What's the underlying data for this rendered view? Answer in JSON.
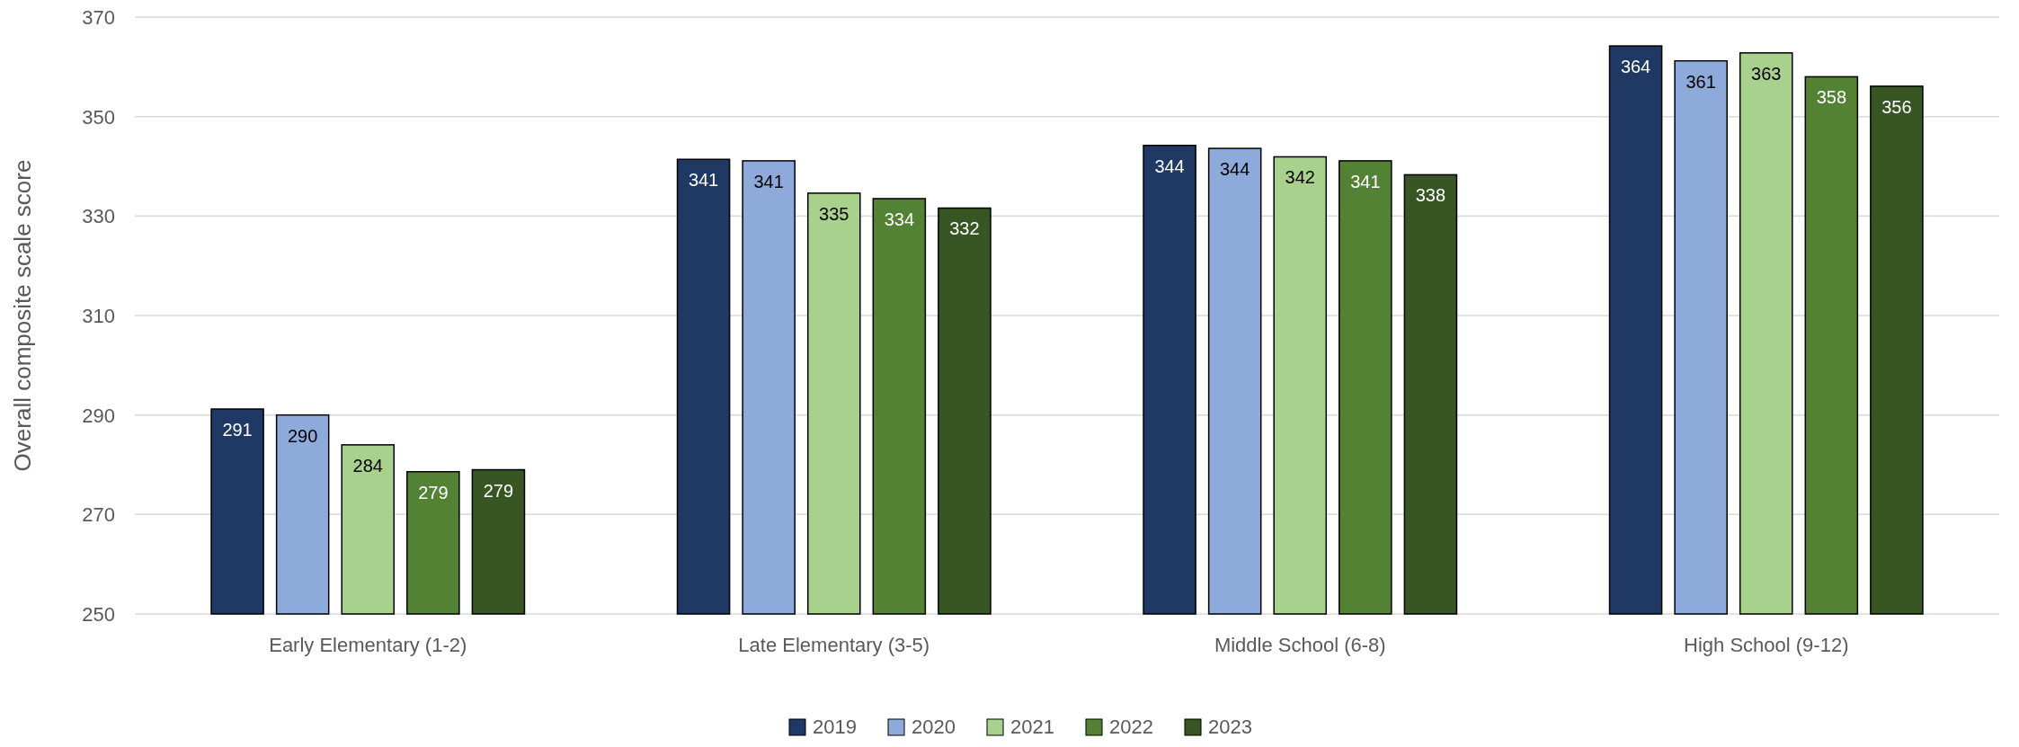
{
  "chart_data": {
    "type": "bar",
    "ylabel": "Overall composite scale score",
    "categories": [
      "Early Elementary (1-2)",
      "Late Elementary (3-5)",
      "Middle School (6-8)",
      "High School (9-12)"
    ],
    "series": [
      {
        "name": "2019",
        "color": "#1f3864",
        "values": [
          291.2,
          341.4,
          344.2,
          364.2
        ],
        "value_labels": [
          "291",
          "341",
          "344",
          "364"
        ]
      },
      {
        "name": "2020",
        "color": "#8eaadb",
        "values": [
          290,
          341.1,
          343.6,
          361.2
        ],
        "value_labels": [
          "290",
          "341",
          "344",
          "361"
        ]
      },
      {
        "name": "2021",
        "color": "#a9d18e",
        "values": [
          284,
          334.6,
          341.9,
          362.8
        ],
        "value_labels": [
          "284",
          "335",
          "342",
          "363"
        ]
      },
      {
        "name": "2022",
        "color": "#548235",
        "values": [
          278.6,
          333.5,
          341.1,
          358
        ],
        "value_labels": [
          "279",
          "334",
          "341",
          "358"
        ]
      },
      {
        "name": "2023",
        "color": "#375623",
        "values": [
          279,
          331.6,
          338.3,
          356.1
        ],
        "value_labels": [
          "279",
          "332",
          "338",
          "356"
        ]
      }
    ],
    "ylim": [
      250,
      370
    ],
    "yticks": [
      250,
      270,
      290,
      310,
      330,
      350,
      370
    ],
    "grid": "y",
    "legend": "bottom"
  }
}
